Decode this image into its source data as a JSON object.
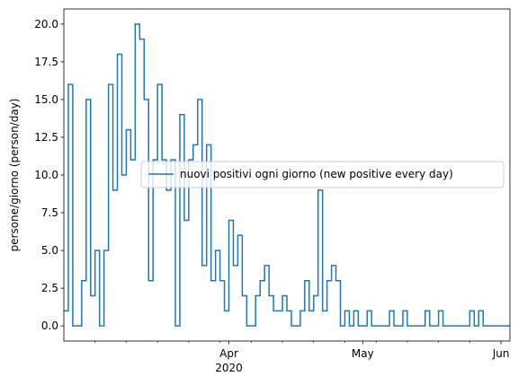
{
  "chart_data": {
    "type": "line",
    "drawstyle": "steps-post",
    "title": "",
    "xlabel": "",
    "ylabel": "persone/giorno (person/day)",
    "x_axis": "date",
    "xlim": [
      "2020-02-24",
      "2020-06-03"
    ],
    "ylim": [
      -1.0,
      21.0
    ],
    "yticks": [
      0.0,
      2.5,
      5.0,
      7.5,
      10.0,
      12.5,
      15.0,
      17.5,
      20.0
    ],
    "ytick_labels": [
      "0.0",
      "2.5",
      "5.0",
      "7.5",
      "10.0",
      "12.5",
      "15.0",
      "17.5",
      "20.0"
    ],
    "xticks_major": [
      {
        "date": "2020-04-01",
        "label": "Apr",
        "sublabel": "2020"
      },
      {
        "date": "2020-05-01",
        "label": "May",
        "sublabel": ""
      },
      {
        "date": "2020-06-01",
        "label": "Jun",
        "sublabel": ""
      }
    ],
    "xticks_minor": [
      "2020-03-02",
      "2020-03-09",
      "2020-03-16",
      "2020-03-23",
      "2020-03-30",
      "2020-04-06",
      "2020-04-13",
      "2020-04-20",
      "2020-04-27",
      "2020-05-04",
      "2020-05-11",
      "2020-05-18",
      "2020-05-25"
    ],
    "grid": false,
    "legend": {
      "placement": "center-right"
    },
    "series": [
      {
        "name": "nuovi positivi ogni giorno (new positive every day)",
        "color": "#1f77b4",
        "x": [
          "2020-02-24",
          "2020-02-25",
          "2020-02-26",
          "2020-02-27",
          "2020-02-28",
          "2020-02-29",
          "2020-03-01",
          "2020-03-02",
          "2020-03-03",
          "2020-03-04",
          "2020-03-05",
          "2020-03-06",
          "2020-03-07",
          "2020-03-08",
          "2020-03-09",
          "2020-03-10",
          "2020-03-11",
          "2020-03-12",
          "2020-03-13",
          "2020-03-14",
          "2020-03-15",
          "2020-03-16",
          "2020-03-17",
          "2020-03-18",
          "2020-03-19",
          "2020-03-20",
          "2020-03-21",
          "2020-03-22",
          "2020-03-23",
          "2020-03-24",
          "2020-03-25",
          "2020-03-26",
          "2020-03-27",
          "2020-03-28",
          "2020-03-29",
          "2020-03-30",
          "2020-03-31",
          "2020-04-01",
          "2020-04-02",
          "2020-04-03",
          "2020-04-04",
          "2020-04-05",
          "2020-04-06",
          "2020-04-07",
          "2020-04-08",
          "2020-04-09",
          "2020-04-10",
          "2020-04-11",
          "2020-04-12",
          "2020-04-13",
          "2020-04-14",
          "2020-04-15",
          "2020-04-16",
          "2020-04-17",
          "2020-04-18",
          "2020-04-19",
          "2020-04-20",
          "2020-04-21",
          "2020-04-22",
          "2020-04-23",
          "2020-04-24",
          "2020-04-25",
          "2020-04-26",
          "2020-04-27",
          "2020-04-28",
          "2020-04-29",
          "2020-04-30",
          "2020-05-01",
          "2020-05-02",
          "2020-05-03",
          "2020-05-04",
          "2020-05-05",
          "2020-05-06",
          "2020-05-07",
          "2020-05-08",
          "2020-05-09",
          "2020-05-10",
          "2020-05-11",
          "2020-05-12",
          "2020-05-13",
          "2020-05-14",
          "2020-05-15",
          "2020-05-16",
          "2020-05-17",
          "2020-05-18",
          "2020-05-19",
          "2020-05-20",
          "2020-05-21",
          "2020-05-22",
          "2020-05-23",
          "2020-05-24",
          "2020-05-25",
          "2020-05-26",
          "2020-05-27",
          "2020-05-28",
          "2020-05-29",
          "2020-05-30",
          "2020-05-31",
          "2020-06-01",
          "2020-06-02"
        ],
        "values": [
          1,
          16,
          0,
          0,
          3,
          15,
          2,
          5,
          0,
          5,
          16,
          9,
          18,
          10,
          13,
          11,
          20,
          19,
          15,
          3,
          11,
          16,
          11,
          9,
          11,
          0,
          14,
          7,
          11,
          12,
          15,
          4,
          12,
          3,
          5,
          3,
          1,
          7,
          4,
          6,
          2,
          0,
          0,
          2,
          3,
          4,
          2,
          1,
          1,
          2,
          1,
          0,
          0,
          1,
          3,
          1,
          2,
          9,
          1,
          3,
          4,
          3,
          0,
          1,
          0,
          1,
          0,
          0,
          1,
          0,
          0,
          0,
          0,
          1,
          0,
          0,
          1,
          0,
          0,
          0,
          0,
          1,
          0,
          0,
          1,
          0,
          0,
          0,
          0,
          0,
          0,
          1,
          0,
          1,
          0,
          0,
          0,
          0,
          0,
          0
        ]
      }
    ]
  }
}
